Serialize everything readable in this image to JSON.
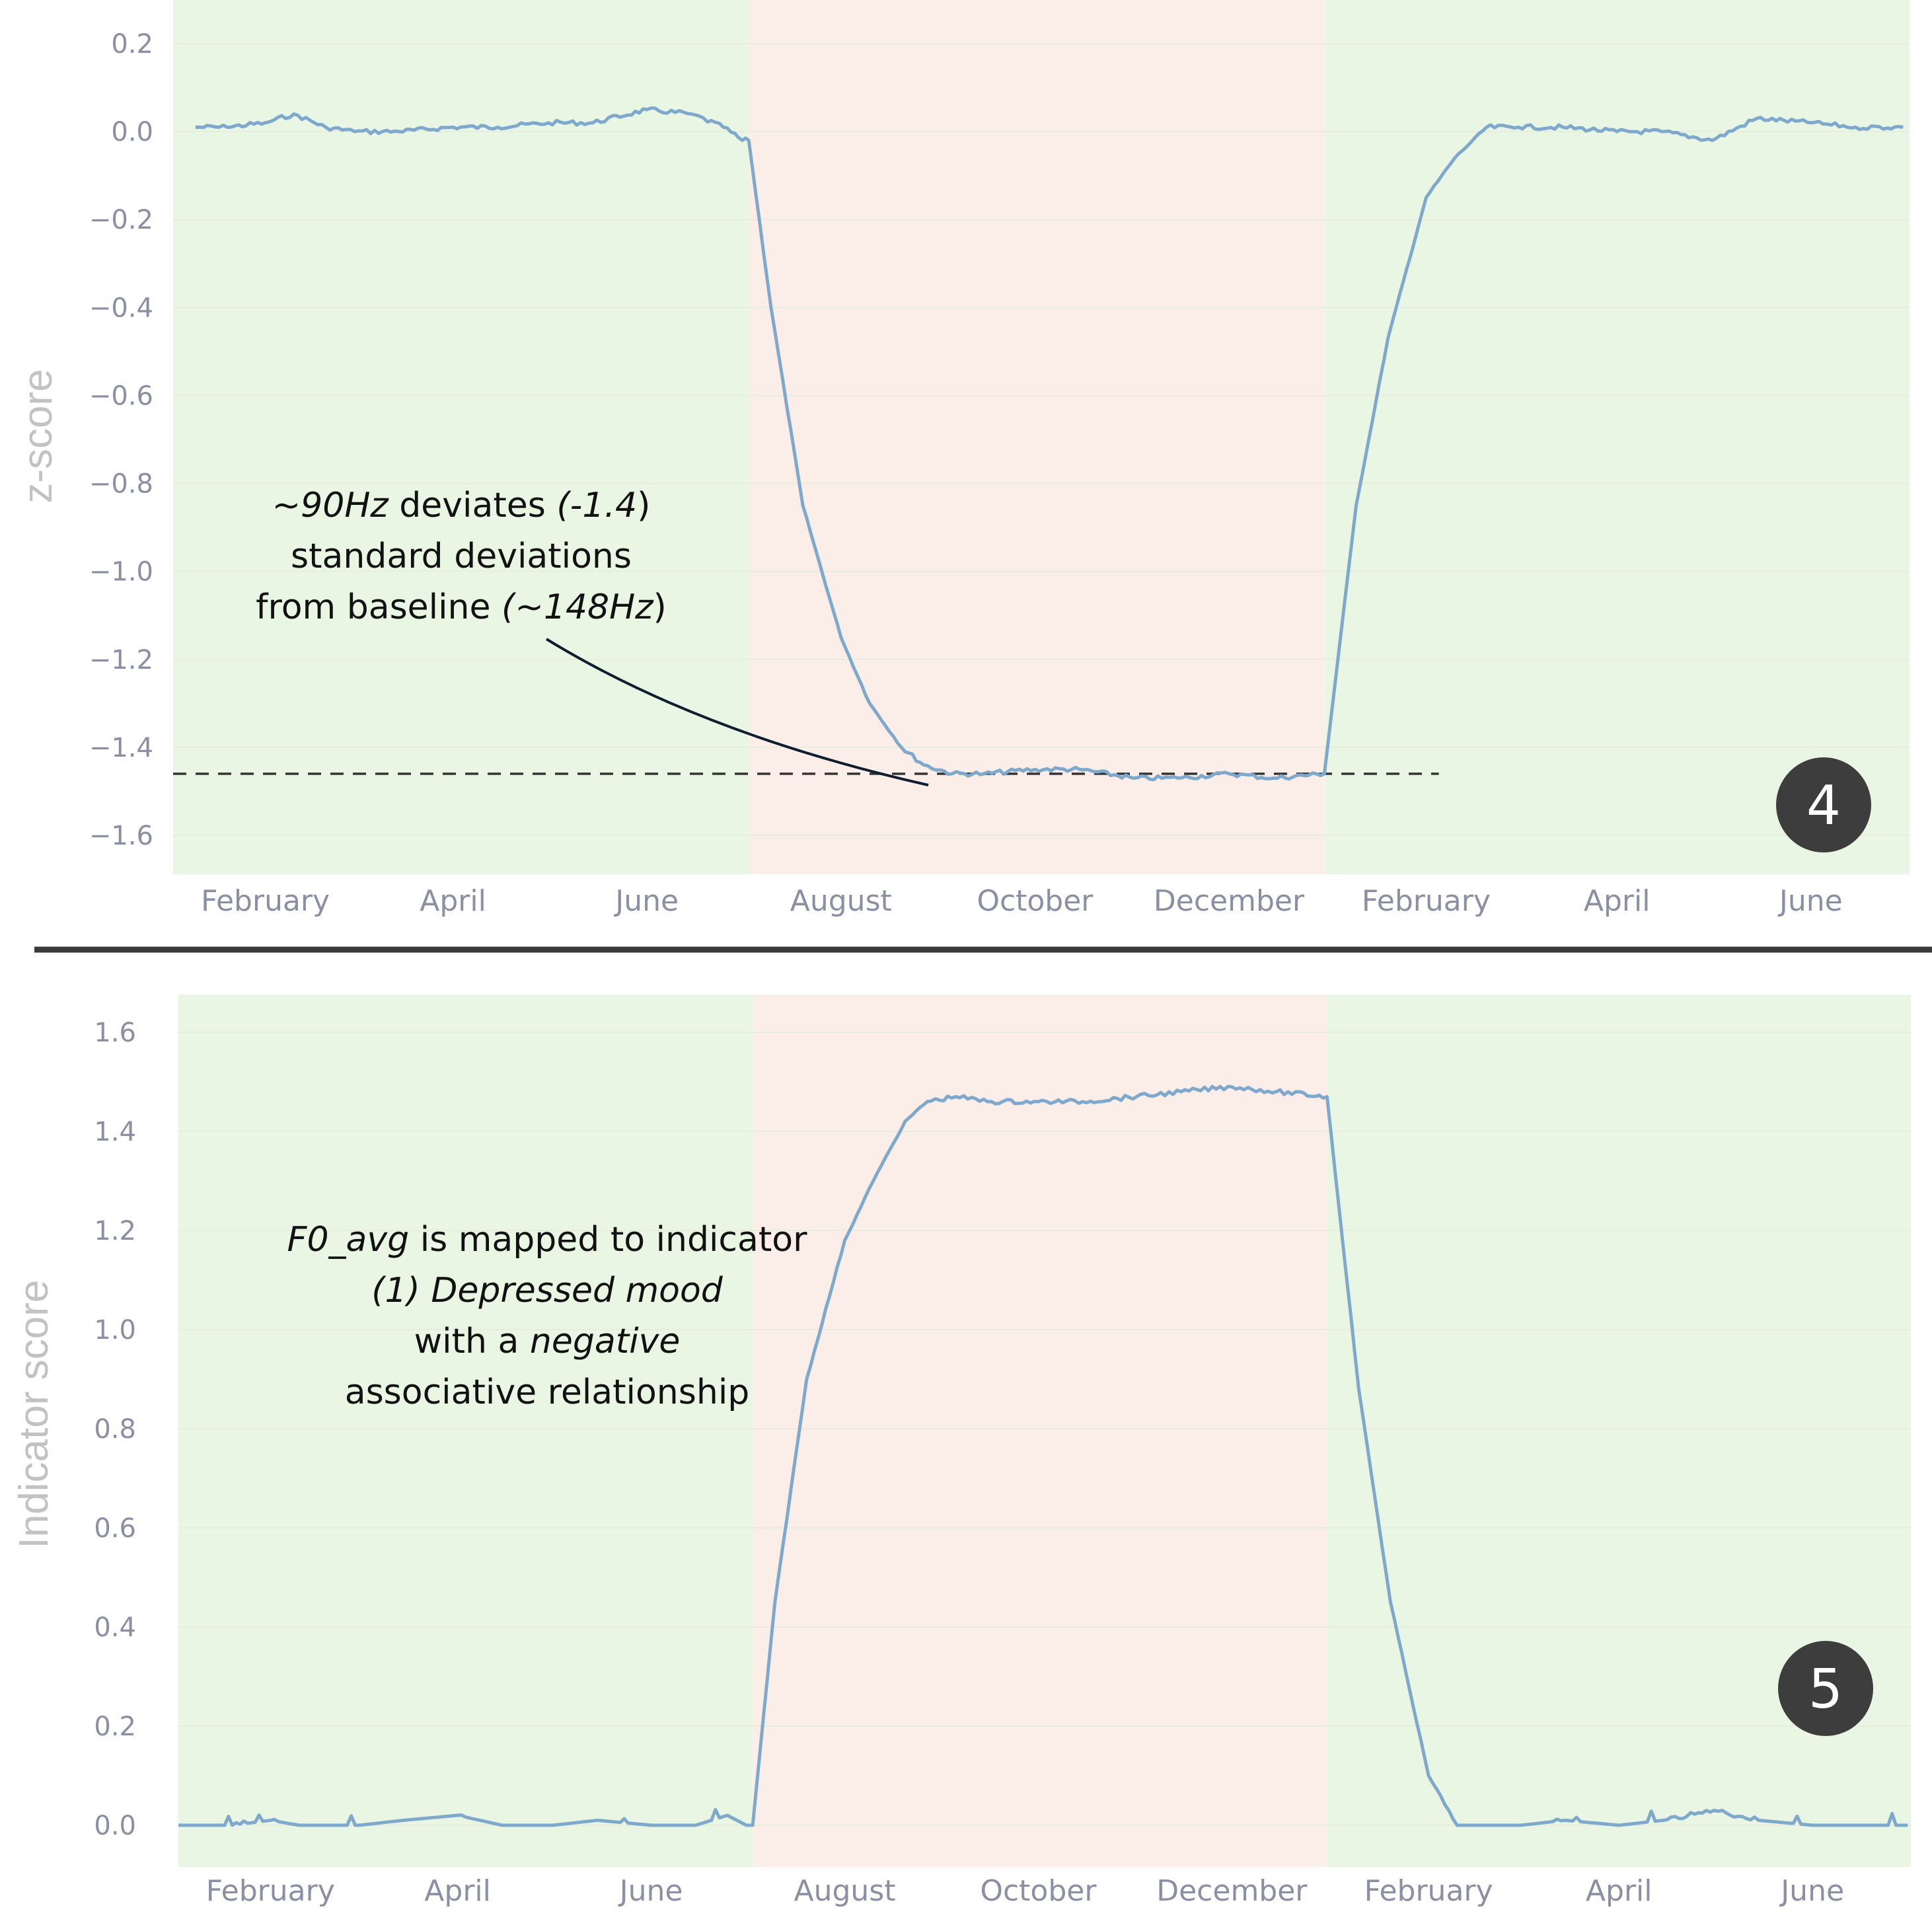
{
  "colors": {
    "baseline_band": "#eaf6e4",
    "episode_band": "#fbeee8",
    "line": "#7ea9cd",
    "grid": "#e7ecdf",
    "tick_text": "#8a8fa3",
    "axis_title": "#c2c2c2",
    "divider": "#3a3a3a",
    "badge": "#3d3d3d",
    "dashed": "#333333",
    "leader": "#0e1e2e"
  },
  "chart_data": [
    {
      "panel_id": "z-score",
      "type": "line",
      "ylabel": "z-score",
      "ylim": [
        -1.7,
        0.25
      ],
      "yticks": [
        0.2,
        0.0,
        -0.2,
        -0.4,
        -0.6,
        -0.8,
        -1.0,
        -1.2,
        -1.4,
        -1.6
      ],
      "ytick_labels": [
        "0.2",
        "0.0",
        "−0.2",
        "−0.4",
        "−0.6",
        "−0.8",
        "−1.0",
        "−1.2",
        "−1.4",
        "−1.6"
      ],
      "x_ticks": [
        {
          "date": "2023-02-01",
          "label": "February"
        },
        {
          "date": "2023-04-01",
          "label": "April"
        },
        {
          "date": "2023-06-01",
          "label": "June"
        },
        {
          "date": "2023-08-01",
          "label": "August"
        },
        {
          "date": "2023-10-01",
          "label": "October"
        },
        {
          "date": "2023-12-01",
          "label": "December"
        },
        {
          "date": "2024-02-01",
          "label": "February"
        },
        {
          "date": "2024-04-01",
          "label": "April"
        },
        {
          "date": "2024-06-01",
          "label": "June"
        }
      ],
      "xlim": [
        "2023-01-03",
        "2024-07-02"
      ],
      "bands": [
        {
          "from": "2023-01-03",
          "to": "2023-07-03",
          "kind": "baseline"
        },
        {
          "from": "2023-07-03",
          "to": "2023-12-31",
          "kind": "episode"
        },
        {
          "from": "2023-12-31",
          "to": "2024-07-02",
          "kind": "baseline"
        }
      ],
      "reference_line": {
        "y": -1.46,
        "from": "2023-01-03",
        "to": "2024-02-05",
        "style": "dashed"
      },
      "series": [
        {
          "x": [
            "2023-01-10",
            "2023-01-20",
            "2023-02-01",
            "2023-02-10",
            "2023-02-20",
            "2023-03-01",
            "2023-03-15",
            "2023-04-01",
            "2023-04-15",
            "2023-05-01",
            "2023-05-15",
            "2023-06-01",
            "2023-06-15",
            "2023-06-25",
            "2023-07-01",
            "2023-07-03",
            "2023-07-10",
            "2023-07-20",
            "2023-08-01",
            "2023-08-10",
            "2023-08-20",
            "2023-08-27",
            "2023-09-05",
            "2023-09-15",
            "2023-10-01",
            "2023-10-15",
            "2023-11-01",
            "2023-11-15",
            "2023-12-01",
            "2023-12-15",
            "2023-12-31",
            "2024-01-10",
            "2024-01-20",
            "2024-02-01",
            "2024-02-10",
            "2024-02-20",
            "2024-03-01",
            "2024-03-15",
            "2024-04-01",
            "2024-04-15",
            "2024-05-01",
            "2024-05-15",
            "2024-06-01",
            "2024-06-15",
            "2024-06-30"
          ],
          "values": [
            0.01,
            0.01,
            0.02,
            0.04,
            0.01,
            0.0,
            0.0,
            0.01,
            0.01,
            0.02,
            0.02,
            0.05,
            0.04,
            0.01,
            -0.02,
            -0.02,
            -0.4,
            -0.85,
            -1.15,
            -1.3,
            -1.4,
            -1.44,
            -1.46,
            -1.46,
            -1.45,
            -1.45,
            -1.47,
            -1.47,
            -1.46,
            -1.47,
            -1.46,
            -0.85,
            -0.47,
            -0.15,
            -0.06,
            0.01,
            0.01,
            0.01,
            0.0,
            0.0,
            -0.02,
            0.03,
            0.02,
            0.01,
            0.01
          ]
        }
      ],
      "annotation": {
        "text": "~90Hz deviates (-1.4) standard deviations from baseline (~148Hz)",
        "lines": [
          {
            "parts": [
              {
                "t": "~90Hz",
                "i": true
              },
              {
                "t": " deviates ",
                "i": false
              },
              {
                "t": "(-1.4",
                "i": true
              },
              {
                "t": ")",
                "i": false
              }
            ]
          },
          {
            "parts": [
              {
                "t": "standard deviations",
                "i": false
              }
            ]
          },
          {
            "parts": [
              {
                "t": "from baseline ",
                "i": false
              },
              {
                "t": "(~148Hz",
                "i": true
              },
              {
                "t": ")",
                "i": false
              }
            ]
          }
        ]
      },
      "badge": "4"
    },
    {
      "panel_id": "indicator",
      "type": "line",
      "ylabel": "Indicator score",
      "ylim": [
        -0.03,
        1.66
      ],
      "yticks": [
        1.6,
        1.4,
        1.2,
        1.0,
        0.8,
        0.6,
        0.4,
        0.2,
        0.0
      ],
      "ytick_labels": [
        "1.6",
        "1.4",
        "1.2",
        "1.0",
        "0.8",
        "0.6",
        "0.4",
        "0.2",
        "0.0"
      ],
      "x_ticks": [
        {
          "date": "2023-02-01",
          "label": "February"
        },
        {
          "date": "2023-04-01",
          "label": "April"
        },
        {
          "date": "2023-06-01",
          "label": "June"
        },
        {
          "date": "2023-08-01",
          "label": "August"
        },
        {
          "date": "2023-10-01",
          "label": "October"
        },
        {
          "date": "2023-12-01",
          "label": "December"
        },
        {
          "date": "2024-02-01",
          "label": "February"
        },
        {
          "date": "2024-04-01",
          "label": "April"
        },
        {
          "date": "2024-06-01",
          "label": "June"
        }
      ],
      "xlim": [
        "2023-01-03",
        "2024-07-02"
      ],
      "bands": [
        {
          "from": "2023-01-03",
          "to": "2023-07-03",
          "kind": "baseline"
        },
        {
          "from": "2023-07-03",
          "to": "2023-12-31",
          "kind": "episode"
        },
        {
          "from": "2023-12-31",
          "to": "2024-07-02",
          "kind": "baseline"
        }
      ],
      "series": [
        {
          "x": [
            "2023-01-03",
            "2023-01-20",
            "2023-02-01",
            "2023-02-10",
            "2023-03-01",
            "2023-03-15",
            "2023-04-01",
            "2023-04-15",
            "2023-05-01",
            "2023-05-15",
            "2023-06-01",
            "2023-06-15",
            "2023-06-25",
            "2023-07-01",
            "2023-07-03",
            "2023-07-10",
            "2023-07-20",
            "2023-08-01",
            "2023-08-10",
            "2023-08-20",
            "2023-08-27",
            "2023-09-05",
            "2023-09-15",
            "2023-10-01",
            "2023-10-15",
            "2023-11-01",
            "2023-11-15",
            "2023-12-01",
            "2023-12-15",
            "2023-12-31",
            "2024-01-10",
            "2024-01-20",
            "2024-02-01",
            "2024-02-10",
            "2024-02-20",
            "2024-03-01",
            "2024-03-15",
            "2024-04-01",
            "2024-04-15",
            "2024-05-01",
            "2024-05-15",
            "2024-06-01",
            "2024-06-15",
            "2024-07-01"
          ],
          "values": [
            0.0,
            0.0,
            0.01,
            0.0,
            0.0,
            0.01,
            0.02,
            0.0,
            0.0,
            0.01,
            0.0,
            0.0,
            0.02,
            0.0,
            0.0,
            0.45,
            0.9,
            1.18,
            1.3,
            1.42,
            1.46,
            1.47,
            1.46,
            1.46,
            1.46,
            1.47,
            1.48,
            1.49,
            1.48,
            1.47,
            0.88,
            0.45,
            0.1,
            0.0,
            0.0,
            0.0,
            0.01,
            0.0,
            0.01,
            0.03,
            0.01,
            0.0,
            0.0,
            0.0
          ]
        }
      ],
      "annotation": {
        "text": "F0_avg is mapped to indicator (1) Depressed mood with a negative associative relationship",
        "lines": [
          {
            "parts": [
              {
                "t": "F0_avg",
                "i": true
              },
              {
                "t": " is mapped to indicator",
                "i": false
              }
            ]
          },
          {
            "parts": [
              {
                "t": "(1) Depressed mood",
                "i": true
              }
            ]
          },
          {
            "parts": [
              {
                "t": "with a ",
                "i": false
              },
              {
                "t": "negative",
                "i": true
              }
            ]
          },
          {
            "parts": [
              {
                "t": "associative relationship",
                "i": false
              }
            ]
          }
        ]
      },
      "badge": "5"
    }
  ]
}
